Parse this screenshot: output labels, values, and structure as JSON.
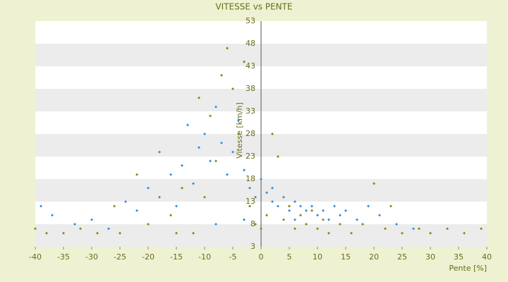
{
  "chart_data": {
    "type": "scatter",
    "title": "VITESSE vs PENTE",
    "x_label": "Pente [%]",
    "y_label": "Vitesse [km/h]",
    "xlim": [
      -40,
      40
    ],
    "xticks": [
      -40,
      -35,
      -30,
      -25,
      -20,
      -15,
      -10,
      -5,
      0,
      5,
      10,
      15,
      20,
      25,
      30,
      35,
      40
    ],
    "ylim": [
      3,
      53
    ],
    "yticks": [
      3,
      8,
      13,
      18,
      23,
      28,
      33,
      38,
      43,
      48,
      53
    ],
    "grid": true,
    "series": [
      {
        "color": "#3a8fd9",
        "x": [
          -39,
          -37,
          -33,
          -30,
          -27,
          -24,
          -22,
          -20,
          -18,
          -16,
          -15,
          -14,
          -13,
          -12,
          -11,
          -10,
          -9,
          -8,
          -7,
          -6,
          -5,
          -4,
          -3,
          -2,
          -1,
          0,
          1,
          2,
          3,
          4,
          5,
          6,
          7,
          8,
          9,
          10,
          11,
          12,
          13,
          14,
          15,
          17,
          19,
          21,
          24,
          27,
          -8,
          -3,
          2,
          6
        ],
        "values": [
          12,
          10,
          8,
          9,
          7,
          13,
          11,
          16,
          14,
          19,
          12,
          21,
          30,
          17,
          25,
          28,
          22,
          34,
          26,
          19,
          24,
          31,
          20,
          16,
          14,
          18,
          15,
          13,
          12,
          14,
          11,
          13,
          12,
          11,
          12,
          10,
          11,
          9,
          12,
          10,
          11,
          9,
          12,
          10,
          8,
          7,
          8,
          9,
          16,
          9
        ]
      },
      {
        "color": "#8a8a1e",
        "x": [
          -40,
          -38,
          -35,
          -32,
          -29,
          -26,
          -25,
          -22,
          -20,
          -18,
          -16,
          -14,
          -12,
          -11,
          -10,
          -9,
          -8,
          -7,
          -6,
          -5,
          -4,
          -3,
          -2,
          -1,
          0,
          1,
          2,
          3,
          4,
          5,
          6,
          7,
          8,
          9,
          10,
          11,
          12,
          14,
          16,
          18,
          20,
          22,
          23,
          25,
          28,
          30,
          33,
          36,
          39,
          -15
        ],
        "values": [
          7,
          6,
          6,
          7,
          6,
          12,
          6,
          19,
          8,
          24,
          10,
          16,
          6,
          36,
          14,
          32,
          22,
          41,
          47,
          38,
          28,
          44,
          12,
          8,
          7,
          10,
          28,
          23,
          9,
          12,
          7,
          10,
          8,
          11,
          7,
          9,
          6,
          8,
          6,
          8,
          17,
          7,
          12,
          6,
          7,
          6,
          7,
          6,
          7,
          6
        ]
      }
    ]
  }
}
